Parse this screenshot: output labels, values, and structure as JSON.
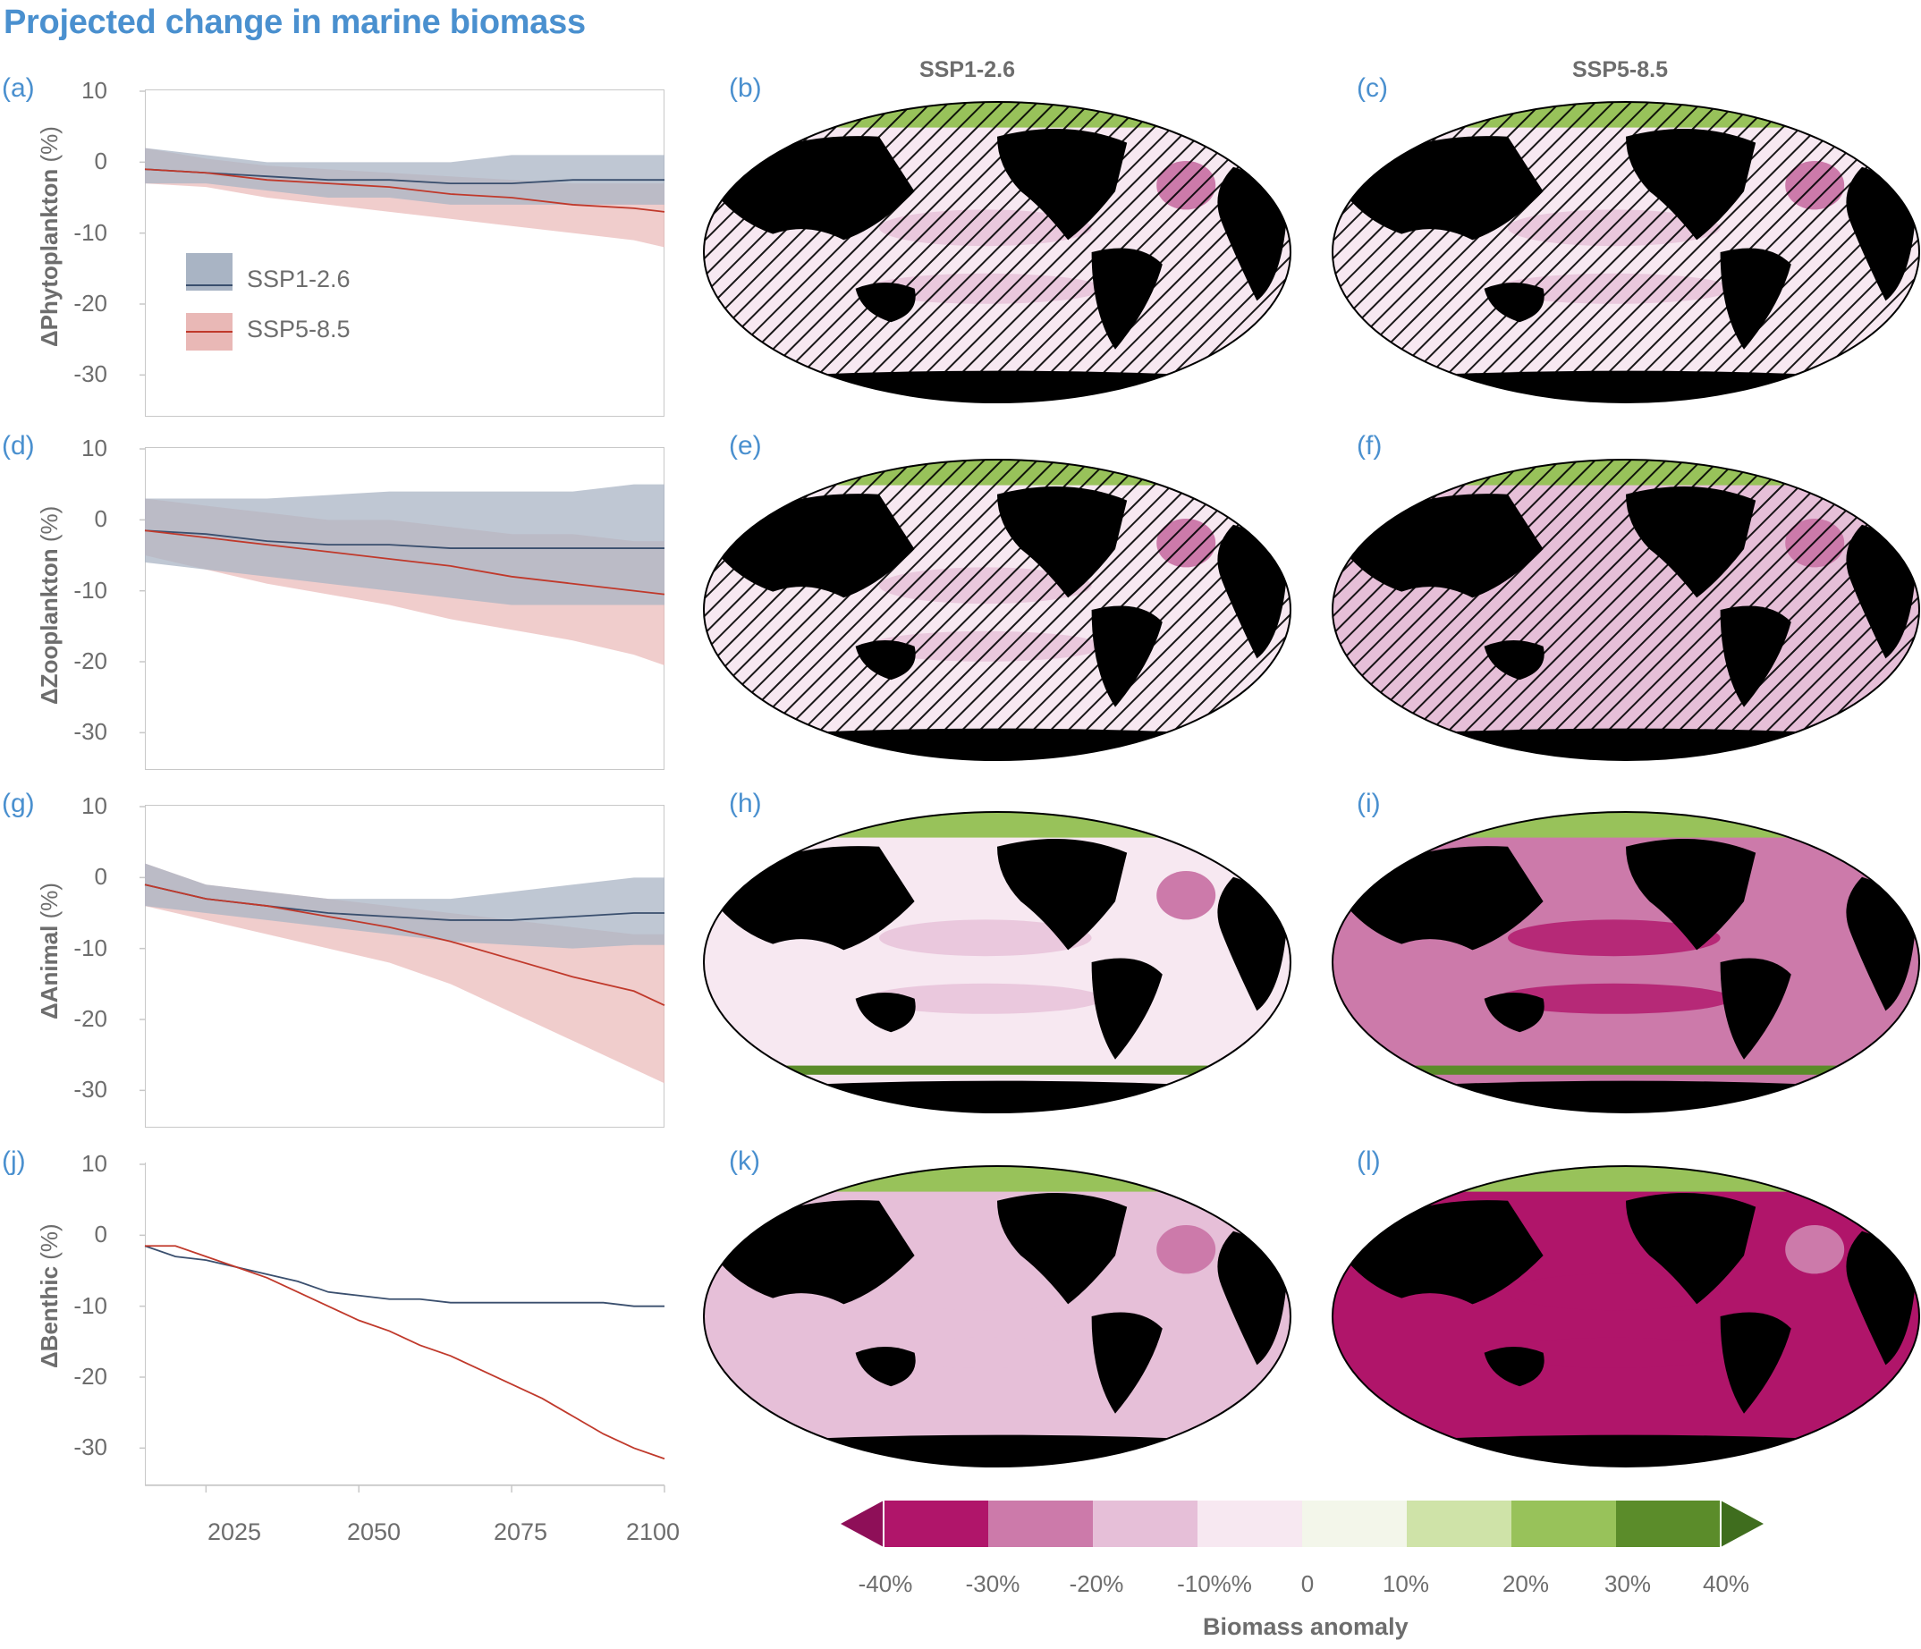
{
  "title": "Projected change in marine biomass",
  "columns": [
    "SSP1-2.6",
    "SSP5-8.5"
  ],
  "colors": {
    "ssp126_line": "#3a4f6e",
    "ssp126_band": "#a9b4c4",
    "ssp585_line": "#c0392b",
    "ssp585_band": "#e9b8b6",
    "title": "#4a90cf",
    "land": "#000000"
  },
  "legend": {
    "ssp126": "SSP1-2.6",
    "ssp585": "SSP5-8.5"
  },
  "x_ticks": [
    "2025",
    "2050",
    "2075",
    "2100"
  ],
  "y_ticks": [
    "10",
    "0",
    "-10",
    "-20",
    "-30"
  ],
  "panels": [
    {
      "label": "(a)",
      "ylabel_bold": "ΔPhytoplankton",
      "ylabel_unit": " (%)",
      "maps": [
        "(b)",
        "(c)"
      ]
    },
    {
      "label": "(d)",
      "ylabel_bold": "ΔZooplankton",
      "ylabel_unit": " (%)",
      "maps": [
        "(e)",
        "(f)"
      ]
    },
    {
      "label": "(g)",
      "ylabel_bold": "ΔAnimal",
      "ylabel_unit": " (%)",
      "maps": [
        "(h)",
        "(i)"
      ]
    },
    {
      "label": "(j)",
      "ylabel_bold": "ΔBenthic",
      "ylabel_unit": " (%)",
      "maps": [
        "(k)",
        "(l)"
      ]
    }
  ],
  "colorbar": {
    "title": "Biomass anomaly",
    "labels": [
      "-40%",
      "-30%",
      "-20%",
      "-10%%",
      "0",
      "10%",
      "20%",
      "30%",
      "40%"
    ],
    "colors": [
      "#b0156a",
      "#cc7aaa",
      "#e6bfd8",
      "#f7e8f1",
      "#f3f6ea",
      "#cfe3a8",
      "#98c25a",
      "#5b8c2a"
    ],
    "min_color": "#8e0f58",
    "max_color": "#3f6d1e"
  },
  "chart_data": [
    {
      "type": "line",
      "title": "",
      "ylabel": "ΔPhytoplankton (%)",
      "xlim": [
        2015,
        2100
      ],
      "ylim": [
        -35,
        10
      ],
      "series": [
        {
          "name": "SSP1-2.6",
          "x": [
            2015,
            2025,
            2035,
            2045,
            2055,
            2065,
            2075,
            2085,
            2095,
            2100
          ],
          "values": [
            -1,
            -1.5,
            -2,
            -2.5,
            -2.5,
            -3,
            -3,
            -2.5,
            -2.5,
            -2.5
          ],
          "lower": [
            -3,
            -3,
            -4,
            -5,
            -5,
            -6,
            -6,
            -6,
            -6,
            -6
          ],
          "upper": [
            2,
            1,
            0,
            0,
            0,
            0,
            1,
            1,
            1,
            1
          ]
        },
        {
          "name": "SSP5-8.5",
          "x": [
            2015,
            2025,
            2035,
            2045,
            2055,
            2065,
            2075,
            2085,
            2095,
            2100
          ],
          "values": [
            -1,
            -1.5,
            -2.5,
            -3,
            -3.5,
            -4.5,
            -5,
            -6,
            -6.5,
            -7
          ],
          "lower": [
            -3,
            -3.5,
            -5,
            -6,
            -7,
            -8,
            -9,
            -10,
            -11,
            -12
          ],
          "upper": [
            2,
            0.5,
            -0.5,
            -1,
            -1.5,
            -2,
            -2.5,
            -3,
            -3,
            -3
          ]
        }
      ]
    },
    {
      "type": "line",
      "title": "",
      "ylabel": "ΔZooplankton (%)",
      "xlim": [
        2015,
        2100
      ],
      "ylim": [
        -35,
        10
      ],
      "series": [
        {
          "name": "SSP1-2.6",
          "x": [
            2015,
            2025,
            2035,
            2045,
            2055,
            2065,
            2075,
            2085,
            2095,
            2100
          ],
          "values": [
            -1.5,
            -2,
            -3,
            -3.5,
            -3.5,
            -4,
            -4,
            -4,
            -4,
            -4
          ],
          "lower": [
            -6,
            -7,
            -8,
            -9,
            -10,
            -11,
            -12,
            -12,
            -12,
            -12
          ],
          "upper": [
            3,
            3,
            3,
            3.5,
            4,
            4,
            4,
            4,
            5,
            5
          ]
        },
        {
          "name": "SSP5-8.5",
          "x": [
            2015,
            2025,
            2035,
            2045,
            2055,
            2065,
            2075,
            2085,
            2095,
            2100
          ],
          "values": [
            -1.5,
            -2.5,
            -3.5,
            -4.5,
            -5.5,
            -6.5,
            -8,
            -9,
            -10,
            -10.5
          ],
          "lower": [
            -5,
            -7,
            -9,
            -10.5,
            -12,
            -14,
            -15.5,
            -17,
            -19,
            -20.5
          ],
          "upper": [
            3,
            2,
            1,
            0,
            0,
            -1,
            -2,
            -2,
            -3,
            -3
          ]
        }
      ]
    },
    {
      "type": "line",
      "title": "",
      "ylabel": "ΔAnimal (%)",
      "xlim": [
        2015,
        2100
      ],
      "ylim": [
        -35,
        10
      ],
      "series": [
        {
          "name": "SSP1-2.6",
          "x": [
            2015,
            2025,
            2035,
            2045,
            2055,
            2065,
            2075,
            2085,
            2095,
            2100
          ],
          "values": [
            -1,
            -3,
            -4,
            -5,
            -5.5,
            -6,
            -6,
            -5.5,
            -5,
            -5
          ],
          "lower": [
            -4,
            -5,
            -6,
            -7,
            -8,
            -9,
            -9.5,
            -10,
            -9.5,
            -9.5
          ],
          "upper": [
            2,
            -1,
            -2,
            -3,
            -3,
            -3,
            -2,
            -1,
            0,
            0
          ]
        },
        {
          "name": "SSP5-8.5",
          "x": [
            2015,
            2025,
            2035,
            2045,
            2055,
            2065,
            2075,
            2085,
            2095,
            2100
          ],
          "values": [
            -1,
            -3,
            -4,
            -5.5,
            -7,
            -9,
            -11.5,
            -14,
            -16,
            -18
          ],
          "lower": [
            -4,
            -6,
            -8,
            -10,
            -12,
            -15,
            -19,
            -23,
            -27,
            -29
          ],
          "upper": [
            2,
            -1,
            -2,
            -3,
            -4,
            -5,
            -6,
            -7,
            -8,
            -8
          ]
        }
      ]
    },
    {
      "type": "line",
      "title": "",
      "ylabel": "ΔBenthic (%)",
      "xlim": [
        2015,
        2100
      ],
      "ylim": [
        -35,
        10
      ],
      "series": [
        {
          "name": "SSP1-2.6",
          "x": [
            2015,
            2020,
            2025,
            2030,
            2035,
            2040,
            2045,
            2050,
            2055,
            2060,
            2065,
            2070,
            2075,
            2080,
            2085,
            2090,
            2095,
            2100
          ],
          "values": [
            -1.5,
            -3,
            -3.5,
            -4.5,
            -5.5,
            -6.5,
            -8,
            -8.5,
            -9,
            -9,
            -9.5,
            -9.5,
            -9.5,
            -9.5,
            -9.5,
            -9.5,
            -10,
            -10
          ]
        },
        {
          "name": "SSP5-8.5",
          "x": [
            2015,
            2020,
            2025,
            2030,
            2035,
            2040,
            2045,
            2050,
            2055,
            2060,
            2065,
            2070,
            2075,
            2080,
            2085,
            2090,
            2095,
            2100
          ],
          "values": [
            -1.5,
            -1.5,
            -3,
            -4.5,
            -6,
            -8,
            -10,
            -12,
            -13.5,
            -15.5,
            -17,
            -19,
            -21,
            -23,
            -25.5,
            -28,
            -30,
            -31.5
          ]
        }
      ]
    }
  ]
}
